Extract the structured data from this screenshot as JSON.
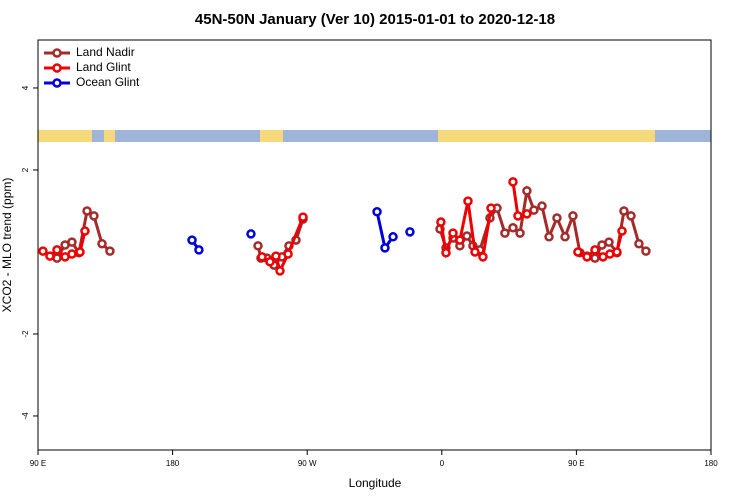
{
  "chart_data": {
    "type": "line",
    "title": "45N-50N January (Ver 10)   2015-01-01 to 2020-12-18",
    "x_label": "Longitude",
    "y_label": "XCO2 - MLO trend (ppm)",
    "xlim": [
      -270,
      180
    ],
    "ylim": [
      -4.83,
      5.17
    ],
    "xticks": [
      {
        "value": -270,
        "label": "90 E"
      },
      {
        "value": -180,
        "label": "180"
      },
      {
        "value": -90,
        "label": "90 W"
      },
      0,
      {
        "value": 90,
        "label": "90 E"
      },
      180
    ],
    "yticks": [
      -4,
      -2,
      2,
      4
    ],
    "legend": "top-left",
    "series": [
      {
        "name": "Land Nadir",
        "color": "#a52a2a",
        "x": [
          -257.3,
          -251.9,
          -247.3,
          -242.6,
          -237.2,
          -232.6,
          -227.2,
          -221.9,
          null,
          -122.9,
          -120.9,
          -116.9,
          -112.2,
          -106.9,
          -102.2,
          -97.5,
          -92.8,
          null,
          -1.2,
          2.8,
          7.5,
          12.1,
          16.8,
          20.8,
          25.5,
          32.2,
          36.9,
          42.2,
          47.6,
          52.3,
          56.9,
          61.6,
          67.0,
          71.7,
          77.0,
          82.4,
          87.7,
          92.4,
          97.1,
          102.4,
          107.1,
          111.8,
          117.1,
          121.8,
          126.5,
          131.8,
          136.5
        ],
        "values": [
          -0.15,
          0.17,
          0.24,
          -0.02,
          1.0,
          0.88,
          0.2,
          0.02,
          null,
          0.15,
          -0.15,
          -0.15,
          -0.32,
          -0.12,
          0.15,
          0.29,
          0.8,
          null,
          0.56,
          0.1,
          0.34,
          0.15,
          0.39,
          0.15,
          0.05,
          0.83,
          1.07,
          0.46,
          0.59,
          0.46,
          1.49,
          1.02,
          1.12,
          0.37,
          0.83,
          0.37,
          0.88,
          -0.02,
          -0.1,
          -0.15,
          0.17,
          0.24,
          -0.02,
          1.0,
          0.88,
          0.2,
          0.02
        ]
      },
      {
        "name": "Land Glint",
        "color": "#ee0000",
        "x": [
          -266.7,
          -262.0,
          -257.3,
          -251.9,
          -247.3,
          -241.9,
          -238.6,
          null,
          -120.2,
          -114.9,
          -110.9,
          -108.2,
          -102.8,
          -92.8,
          null,
          -0.6,
          2.8,
          7.5,
          12.1,
          17.5,
          22.2,
          27.5,
          32.9,
          null,
          47.6,
          50.9,
          56.9,
          null,
          91.0,
          97.1,
          102.4,
          107.8,
          112.4,
          117.1,
          120.5
        ],
        "values": [
          0.02,
          -0.1,
          0.05,
          -0.12,
          -0.05,
          0.0,
          0.51,
          null,
          -0.12,
          -0.24,
          -0.1,
          -0.46,
          -0.05,
          0.85,
          null,
          0.73,
          -0.02,
          0.46,
          0.29,
          1.24,
          0.0,
          -0.12,
          1.07,
          null,
          1.71,
          0.88,
          0.93,
          null,
          0.0,
          -0.12,
          0.05,
          -0.12,
          -0.05,
          0.0,
          0.51
        ]
      },
      {
        "name": "Ocean Glint",
        "color": "#0000dd",
        "x": [
          -167.0,
          -162.4,
          null,
          -127.6,
          null,
          -43.3,
          -38.0,
          -32.6,
          null,
          -21.3
        ],
        "values": [
          0.29,
          0.05,
          null,
          0.44,
          null,
          0.98,
          0.1,
          0.37,
          null,
          0.49
        ]
      }
    ]
  }
}
